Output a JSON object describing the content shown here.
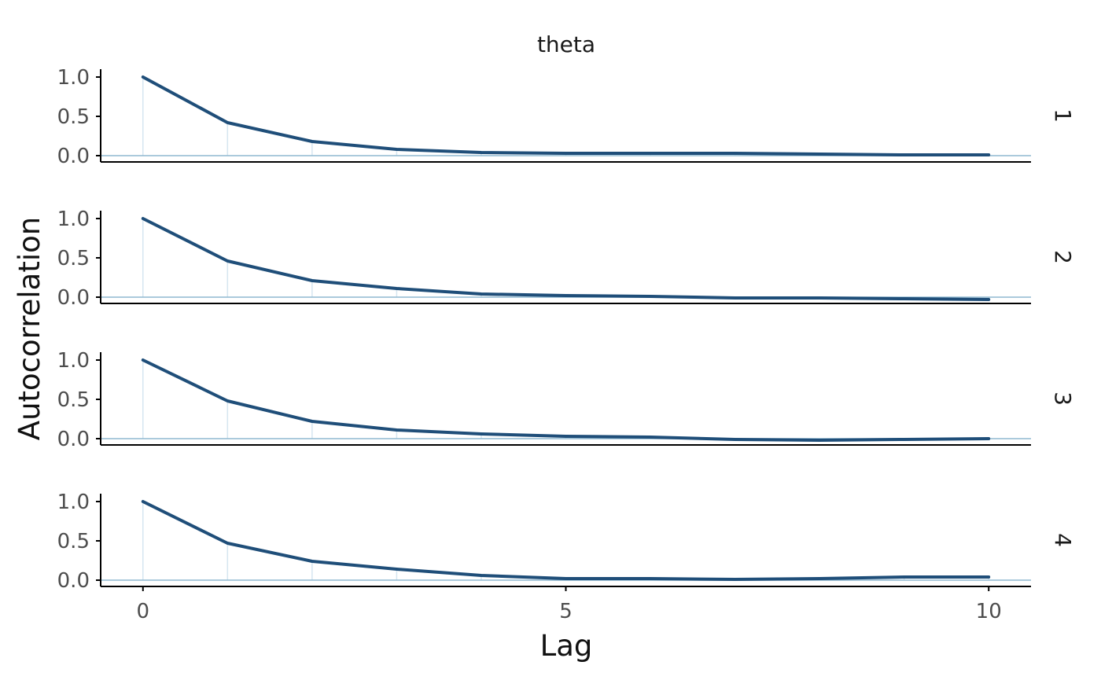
{
  "chart_data": {
    "type": "line",
    "title": "theta",
    "xlabel": "Lag",
    "ylabel": "Autocorrelation",
    "x": [
      0,
      1,
      2,
      3,
      4,
      5,
      6,
      7,
      8,
      9,
      10
    ],
    "x_ticks": [
      "0",
      "5",
      "10"
    ],
    "x_tick_values": [
      0,
      5,
      10
    ],
    "xlim": [
      -0.5,
      10.5
    ],
    "y_ticks": [
      "0.0",
      "0.5",
      "1.0"
    ],
    "y_tick_values": [
      0,
      0.5,
      1
    ],
    "ylim": [
      -0.08,
      1.1
    ],
    "grid": false,
    "legend": "none",
    "colors": {
      "line": "#1f4e79",
      "zero_line": "#8fb8d0",
      "lag_bar": "#d6e6f0"
    },
    "panels": [
      {
        "strip": "1",
        "values": [
          1.0,
          0.42,
          0.18,
          0.08,
          0.04,
          0.03,
          0.03,
          0.03,
          0.02,
          0.01,
          0.01
        ]
      },
      {
        "strip": "2",
        "values": [
          1.0,
          0.46,
          0.21,
          0.11,
          0.04,
          0.02,
          0.01,
          -0.01,
          -0.01,
          -0.02,
          -0.03
        ]
      },
      {
        "strip": "3",
        "values": [
          1.0,
          0.48,
          0.22,
          0.11,
          0.06,
          0.03,
          0.02,
          -0.01,
          -0.02,
          -0.01,
          0.0
        ]
      },
      {
        "strip": "4",
        "values": [
          1.0,
          0.47,
          0.24,
          0.14,
          0.06,
          0.02,
          0.02,
          0.01,
          0.02,
          0.04,
          0.04
        ]
      }
    ]
  }
}
